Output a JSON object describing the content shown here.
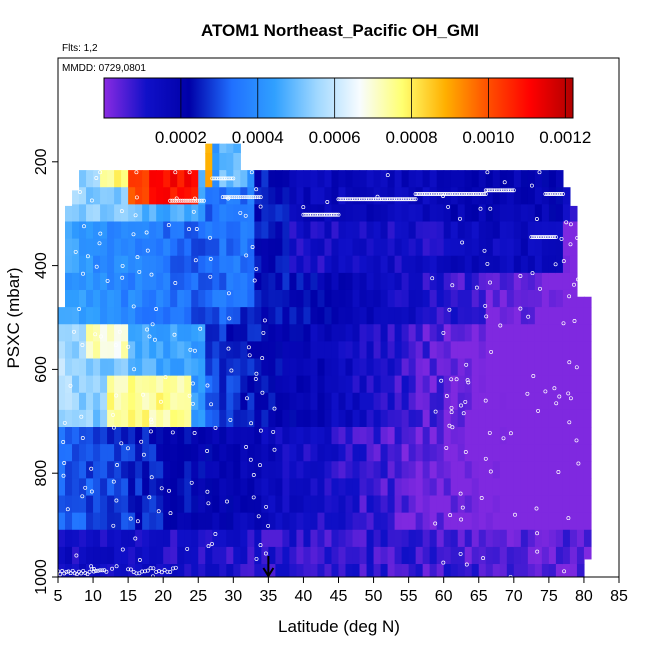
{
  "chart_data": {
    "type": "heatmap",
    "title": "ATOM1 Northeast_Pacific OH_GMI",
    "annotations": [
      "Flts: 1,2",
      "MMDD: 0729,0801"
    ],
    "xlabel": "Latitude (deg N)",
    "ylabel": "PSXC (mbar)",
    "xlim": [
      5,
      85
    ],
    "ylim": [
      1000,
      0
    ],
    "x_ticks": [
      5,
      10,
      15,
      20,
      25,
      30,
      35,
      40,
      45,
      50,
      55,
      60,
      65,
      70,
      75,
      80,
      85
    ],
    "x_tick_labels": [
      "5",
      "10",
      "15",
      "20",
      "25",
      "30",
      "35",
      "40",
      "45",
      "50",
      "55",
      "60",
      "65",
      "70",
      "75",
      "80",
      "85"
    ],
    "y_ticks": [
      200,
      400,
      600,
      800,
      1000
    ],
    "y_tick_labels": [
      "200",
      "400",
      "600",
      "800",
      "1000"
    ],
    "colorbar": {
      "range": [
        0,
        0.00122
      ],
      "ticks": [
        0.0002,
        0.0004,
        0.0006,
        0.0008,
        0.001,
        0.0012
      ],
      "tick_labels": [
        "0.0002",
        "0.0004",
        "0.0006",
        "0.0008",
        "0.0010",
        "0.0012"
      ],
      "colors": [
        "#8a2be2",
        "#1010c8",
        "#0000a8",
        "#2070ff",
        "#30a0ff",
        "#a0d8ff",
        "#f8fcff",
        "#ffff70",
        "#ffb000",
        "#ff5000",
        "#ff0000",
        "#b00000"
      ]
    },
    "marker": {
      "x": 35,
      "y": 1000,
      "shape": "arrow-down"
    }
  }
}
